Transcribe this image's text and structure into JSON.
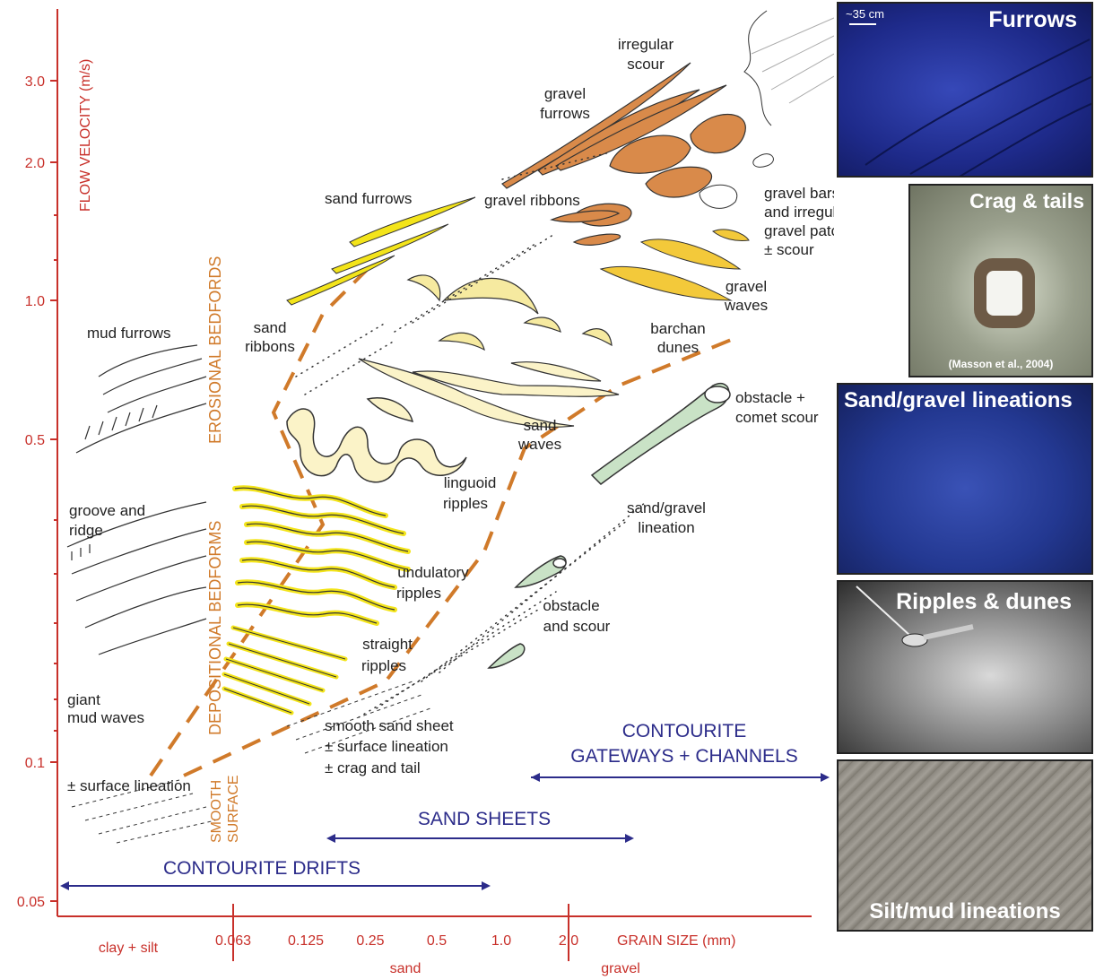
{
  "axes": {
    "y_title": "FLOW VELOCITY (m/s)",
    "x_title": "GRAIN SIZE (mm)",
    "y_ticks": [
      "3.0",
      "2.0",
      "1.0",
      "0.5",
      "0.1",
      "0.05"
    ],
    "x_ticks": [
      "0.063",
      "0.125",
      "0.25",
      "0.5",
      "1.0",
      "2.0"
    ],
    "x_classes": {
      "clay_silt": "clay + silt",
      "sand": "sand",
      "gravel": "gravel"
    }
  },
  "zones": {
    "erosional": "EROSIONAL BEDFORDS",
    "depositional": "DEPOSITIONAL BEDFORMS",
    "smooth_1": "SMOOTH",
    "smooth_2": "SURFACE"
  },
  "labels": {
    "irregular_scour_1": "irregular",
    "irregular_scour_2": "scour",
    "gravel_furrows_1": "gravel",
    "gravel_furrows_2": "furrows",
    "sand_furrows": "sand furrows",
    "gravel_ribbons": "gravel  ribbons",
    "gravel_bars_1": "gravel bars",
    "gravel_bars_2": "and irregular",
    "gravel_bars_3": "gravel patches",
    "gravel_bars_4": "± scour",
    "gravel_waves_1": "gravel",
    "gravel_waves_2": "waves",
    "mud_furrows": "mud furrows",
    "sand_ribbons_1": "sand",
    "sand_ribbons_2": "ribbons",
    "barchan_1": "barchan",
    "barchan_2": "dunes",
    "obstacle_comet_1": "obstacle +",
    "obstacle_comet_2": "comet scour",
    "sand_waves_1": "sand",
    "sand_waves_2": "waves",
    "linguoid_1": "linguoid",
    "linguoid_2": "ripples",
    "groove_1": "groove and",
    "groove_2": "ridge",
    "lineation_1": "sand/gravel",
    "lineation_2": "lineation",
    "undulatory_1": "undulatory",
    "undulatory_2": "ripples",
    "obstacle_scour_1": "obstacle",
    "obstacle_scour_2": "and scour",
    "straight_1": "straight",
    "straight_2": "ripples",
    "giant_mud_1": "giant",
    "giant_mud_2": "mud waves",
    "smooth_sheet_1": "smooth sand sheet",
    "smooth_sheet_2": "± surface lineation",
    "smooth_sheet_3": "± crag and tail",
    "surface_lineation": "± surface lineation"
  },
  "ranges": {
    "gateways_1": "CONTOURITE",
    "gateways_2": "GATEWAYS + CHANNELS",
    "sand_sheets": "SAND SHEETS",
    "drifts": "CONTOURITE    DRIFTS"
  },
  "photos": [
    {
      "title": "Furrows",
      "scale": "~35 cm",
      "bg": "#1e2a8a"
    },
    {
      "title": "Crag & tails",
      "credit": "(Masson et al., 2004)",
      "bg": "#8d9183"
    },
    {
      "title": "Sand/gravel lineations",
      "bg": "#233891"
    },
    {
      "title": "Ripples & dunes",
      "bg": "#5a5a5a"
    },
    {
      "title": "Silt/mud lineations",
      "bg": "#8a8680"
    }
  ],
  "colors": {
    "axis": "#c8302a",
    "zone_boundary": "#d07a2a",
    "sand_fill": "#f3e41a",
    "gravel_fill": "#d98a4a",
    "scour_fill": "#c9e2c6",
    "range_arrow": "#2c2c8a"
  }
}
